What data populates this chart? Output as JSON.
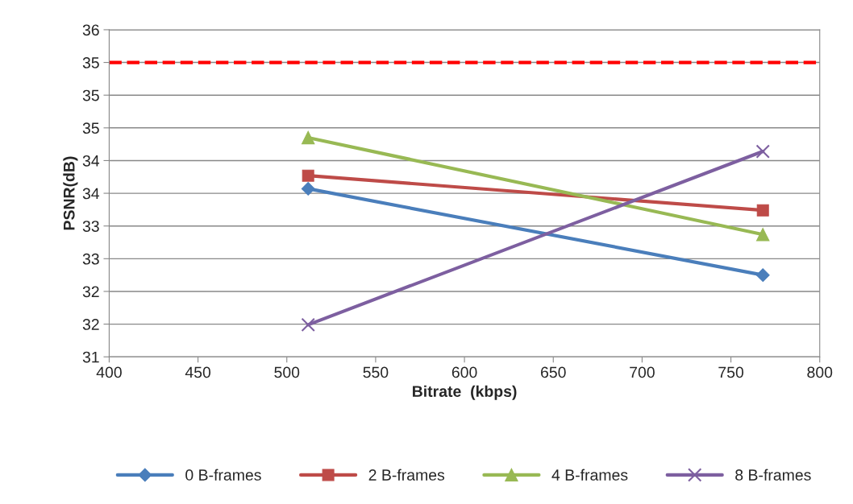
{
  "chart_data": {
    "type": "line",
    "xlabel": "Bitrate  (kbps)",
    "ylabel": "PSNR(dB)",
    "x": [
      512,
      768
    ],
    "xlim": [
      400,
      800
    ],
    "xticks": [
      400,
      450,
      500,
      550,
      600,
      650,
      700,
      750,
      800
    ],
    "ylim": [
      31,
      36
    ],
    "yticks": [
      31,
      {
        "value": 31.5,
        "label": "32"
      },
      32,
      {
        "value": 32.5,
        "label": "33"
      },
      33,
      {
        "value": 33.5,
        "label": "34"
      },
      34,
      {
        "value": 34.5,
        "label": "35"
      },
      35,
      {
        "value": 35.5,
        "label": "35"
      },
      36
    ],
    "grid": "y",
    "legend": "bottom",
    "line_style": "solid",
    "ref_lines": [
      {
        "axis": "y",
        "value": 35.5,
        "color": "#ff0000",
        "line_style": "dashed"
      }
    ],
    "series": [
      {
        "name": "0 B-frames",
        "color": "#4a7ebb",
        "marker": "diamond",
        "values": [
          33.57,
          32.25
        ]
      },
      {
        "name": "2 B-frames",
        "color": "#be4b48",
        "marker": "square",
        "values": [
          33.77,
          33.24
        ]
      },
      {
        "name": "4 B-frames",
        "color": "#98b954",
        "marker": "triangle",
        "values": [
          34.35,
          32.87
        ]
      },
      {
        "name": "8 B-frames",
        "color": "#7d5fa0",
        "marker": "cross",
        "values": [
          31.49,
          34.14
        ]
      }
    ]
  }
}
